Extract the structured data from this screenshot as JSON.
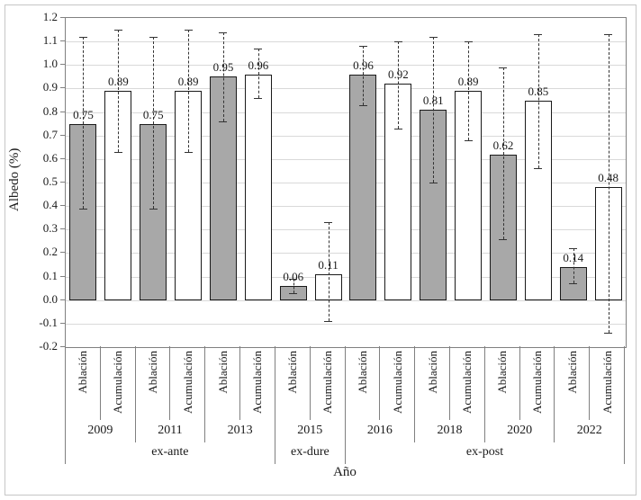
{
  "chart_data": {
    "type": "bar",
    "title": "",
    "ylabel": "Albedo (%)",
    "xlabel": "Año",
    "ylim": [
      -0.2,
      1.2
    ],
    "grid": true,
    "legend": "none (series identified by category axis labels)",
    "y_ticks": [
      "1.2",
      "1.1",
      "1.0",
      "0.9",
      "0.8",
      "0.7",
      "0.6",
      "0.5",
      "0.4",
      "0.3",
      "0.2",
      "0.1",
      "0.0",
      "-0.1",
      "-0.2"
    ],
    "series_names": [
      "Ablación",
      "Acumulación"
    ],
    "groups": [
      {
        "year": "2009",
        "phase": "ex-ante",
        "bars": [
          {
            "label": "Ablación",
            "value": 0.75,
            "err_low": 0.39,
            "err_high": 1.12
          },
          {
            "label": "Acumulación",
            "value": 0.89,
            "err_low": 0.63,
            "err_high": 1.15
          }
        ]
      },
      {
        "year": "2011",
        "phase": "ex-ante",
        "bars": [
          {
            "label": "Ablación",
            "value": 0.75,
            "err_low": 0.39,
            "err_high": 1.12
          },
          {
            "label": "Acumulación",
            "value": 0.89,
            "err_low": 0.63,
            "err_high": 1.15
          }
        ]
      },
      {
        "year": "2013",
        "phase": "ex-ante",
        "bars": [
          {
            "label": "Ablación",
            "value": 0.95,
            "err_low": 0.76,
            "err_high": 1.14
          },
          {
            "label": "Acumulación",
            "value": 0.96,
            "err_low": 0.86,
            "err_high": 1.07
          }
        ]
      },
      {
        "year": "2015",
        "phase": "ex-dure",
        "bars": [
          {
            "label": "Ablación",
            "value": 0.06,
            "err_low": 0.03,
            "err_high": 0.09
          },
          {
            "label": "Acumulación",
            "value": 0.11,
            "err_low": -0.09,
            "err_high": 0.33
          }
        ]
      },
      {
        "year": "2016",
        "phase": "ex-post",
        "bars": [
          {
            "label": "Ablación",
            "value": 0.96,
            "err_low": 0.83,
            "err_high": 1.08
          },
          {
            "label": "Acumulación",
            "value": 0.92,
            "err_low": 0.73,
            "err_high": 1.1
          }
        ]
      },
      {
        "year": "2018",
        "phase": "ex-post",
        "bars": [
          {
            "label": "Ablación",
            "value": 0.81,
            "err_low": 0.5,
            "err_high": 1.12
          },
          {
            "label": "Acumulación",
            "value": 0.89,
            "err_low": 0.68,
            "err_high": 1.1
          }
        ]
      },
      {
        "year": "2020",
        "phase": "ex-post",
        "bars": [
          {
            "label": "Ablación",
            "value": 0.62,
            "err_low": 0.26,
            "err_high": 0.99
          },
          {
            "label": "Acumulación",
            "value": 0.85,
            "err_low": 0.56,
            "err_high": 1.13
          }
        ]
      },
      {
        "year": "2022",
        "phase": "ex-post",
        "bars": [
          {
            "label": "Ablación",
            "value": 0.14,
            "err_low": 0.07,
            "err_high": 0.22
          },
          {
            "label": "Acumulación",
            "value": 0.48,
            "err_low": -0.14,
            "err_high": 1.13
          }
        ]
      }
    ],
    "phases": [
      {
        "label": "ex-ante",
        "year_span": 3
      },
      {
        "label": "ex-dure",
        "year_span": 1
      },
      {
        "label": "ex-post",
        "year_span": 4
      }
    ],
    "colors": {
      "ablacion_fill": "#a8a8a8",
      "acumulacion_fill": "#ffffff",
      "bar_border": "#1a1a1a",
      "gridline": "#d9d9d9",
      "axis_line": "#808080",
      "error_bar": "#333333",
      "text": "#1a1a1a",
      "figure_border": "#c6c6c6"
    }
  }
}
